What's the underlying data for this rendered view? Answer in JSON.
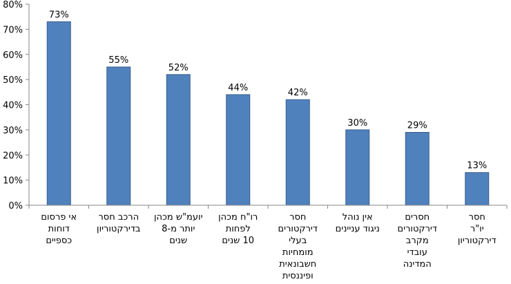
{
  "chart_data": {
    "type": "bar",
    "categories": [
      "אי פרסום דוחות כספיים",
      "הרכב חסר בדירקטוריון",
      "יועמ\"ש מכהן יותר מ-8 שנים",
      "רו\"ח מכהן לפחות 10 שנים",
      "חסר דירקטורים בעלי מומחיות חשבונאית ופיננסית",
      "אין נוהל ניגוד עניינים",
      "חסרים דירקטורים מקרב עובדי המדינה",
      "חסר יו\"ר דירקטוריון"
    ],
    "category_lines": [
      [
        "אי פרסום",
        "דוחות",
        "כספיים"
      ],
      [
        "הרכב חסר",
        "בדירקטוריון"
      ],
      [
        "יועמ\"ש מכהן",
        "יותר מ-8",
        "שנים"
      ],
      [
        "רו\"ח מכהן",
        "לפחות",
        "10 שנים"
      ],
      [
        "חסר",
        "דירקטורים",
        "בעלי",
        "מומחיות",
        "חשבונאית",
        "ופיננסית"
      ],
      [
        "אין נוהל",
        "ניגוד עניינים"
      ],
      [
        "חסרים",
        "דירקטורים",
        "מקרב",
        "עובדי",
        "המדינה"
      ],
      [
        "חסר",
        "יו\"ר",
        "דירקטוריון"
      ]
    ],
    "values": [
      73,
      55,
      52,
      44,
      42,
      30,
      29,
      13
    ],
    "data_labels": [
      "73%",
      "55%",
      "52%",
      "44%",
      "42%",
      "30%",
      "29%",
      "13%"
    ],
    "y_ticks": [
      "0%",
      "10%",
      "20%",
      "30%",
      "40%",
      "50%",
      "60%",
      "70%",
      "80%"
    ],
    "ylim": [
      0,
      80
    ],
    "title": "",
    "xlabel": "",
    "ylabel": "",
    "grid": false,
    "legend": "none",
    "colors": {
      "bar_fill": "#4f81bd",
      "bar_edge": "#385d8a",
      "axis": "#868686"
    }
  }
}
